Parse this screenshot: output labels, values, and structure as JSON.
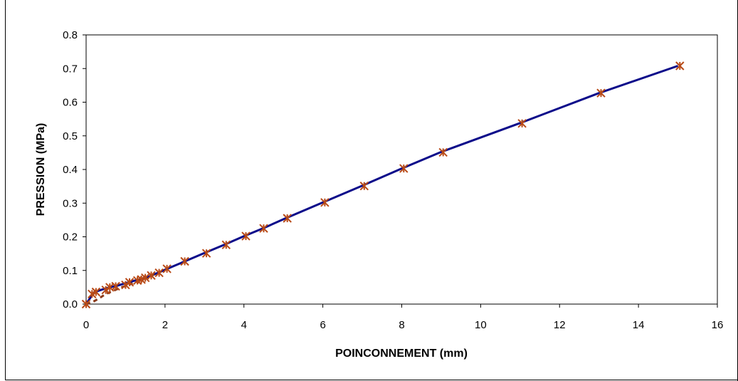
{
  "chart_data": {
    "type": "line",
    "title": "",
    "xlabel": "POINCONNEMENT (mm)",
    "ylabel": "PRESSION (MPa)",
    "xlim": [
      0,
      16
    ],
    "ylim": [
      0,
      0.8
    ],
    "x_ticks": [
      0,
      2,
      4,
      6,
      8,
      10,
      12,
      14,
      16
    ],
    "y_ticks": [
      0.0,
      0.1,
      0.2,
      0.3,
      0.4,
      0.5,
      0.6,
      0.7,
      0.8
    ],
    "y_tick_labels": [
      "0.0",
      "0.1",
      "0.2",
      "0.3",
      "0.4",
      "0.5",
      "0.6",
      "0.7",
      "0.8"
    ],
    "grid": false,
    "legend": "none",
    "series": [
      {
        "color": "#0b0b8a",
        "style": "solid",
        "x": [
          0,
          0.2,
          0.4,
          0.6,
          0.8,
          1.0,
          1.3,
          1.6,
          2.0,
          2.5,
          3.0,
          3.5,
          4.0,
          4.5,
          5.0,
          6.0,
          7.0,
          8.0,
          9.0,
          11.0,
          13.0,
          15.0
        ],
        "values": [
          0,
          0.035,
          0.043,
          0.05,
          0.055,
          0.062,
          0.072,
          0.082,
          0.102,
          0.127,
          0.152,
          0.176,
          0.202,
          0.226,
          0.252,
          0.302,
          0.352,
          0.403,
          0.452,
          0.538,
          0.627,
          0.708
        ]
      },
      {
        "color": "#8b3a1a",
        "style": "dashed",
        "x": [
          0,
          0.15,
          0.3,
          0.5,
          0.7,
          0.9,
          1.1,
          1.3,
          1.5,
          1.8,
          2.0
        ],
        "values": [
          0,
          0.005,
          0.015,
          0.03,
          0.04,
          0.05,
          0.058,
          0.067,
          0.077,
          0.092,
          0.102
        ]
      },
      {
        "color": "#b84a17",
        "style": "markers",
        "marker": "asterisk",
        "x": [
          0,
          0.15,
          0.25,
          0.5,
          0.6,
          0.75,
          1.0,
          1.1,
          1.3,
          1.4,
          1.5,
          1.65,
          1.85,
          2.05,
          2.5,
          3.05,
          3.55,
          4.05,
          4.5,
          5.1,
          6.05,
          7.05,
          8.05,
          9.05,
          11.05,
          13.05,
          15.05
        ],
        "values": [
          0,
          0.03,
          0.036,
          0.042,
          0.05,
          0.053,
          0.057,
          0.065,
          0.07,
          0.073,
          0.078,
          0.085,
          0.093,
          0.105,
          0.127,
          0.151,
          0.176,
          0.202,
          0.225,
          0.255,
          0.302,
          0.351,
          0.403,
          0.451,
          0.537,
          0.627,
          0.708
        ]
      }
    ]
  }
}
